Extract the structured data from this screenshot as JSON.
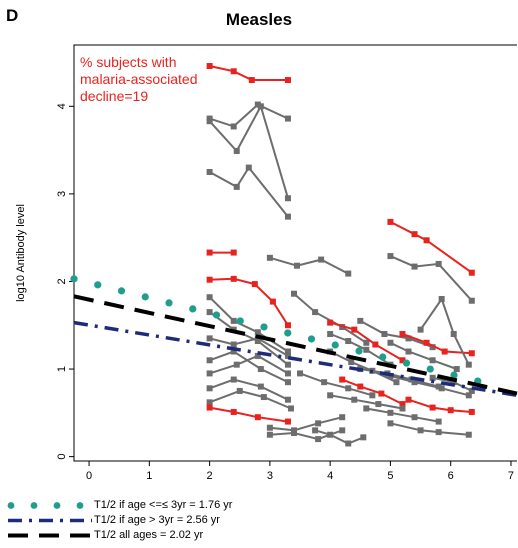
{
  "panel_label": "D",
  "chart_data": {
    "type": "line",
    "title": "Measles",
    "xlabel": "",
    "ylabel": "log10 Antibody level",
    "xlim": [
      -0.25,
      7.1
    ],
    "ylim": [
      -0.05,
      4.7
    ],
    "xticks": [
      0,
      1,
      2,
      3,
      4,
      5,
      6,
      7
    ],
    "yticks": [
      0,
      1,
      2,
      3,
      4
    ],
    "grid": false,
    "legend_placement": "below",
    "annotation": {
      "lines": [
        "% subjects with",
        "malaria-associated",
        "decline=19"
      ],
      "color": "#e8231f",
      "placement": "top-left"
    },
    "colors": {
      "gray": "#6d6d6d",
      "red": "#e8231f",
      "teal": "#1f9e8e",
      "navy": "#1e2a7a",
      "black": "#000000"
    },
    "subjects": [
      {
        "color": "red",
        "x": [
          2.0,
          2.4,
          2.7,
          3.3
        ],
        "y": [
          4.46,
          4.4,
          4.3,
          4.3
        ]
      },
      {
        "color": "gray",
        "x": [
          2.0,
          2.4,
          2.8,
          3.3
        ],
        "y": [
          3.86,
          3.77,
          4.02,
          3.86
        ]
      },
      {
        "color": "gray",
        "x": [
          2.0,
          2.45,
          2.85,
          3.3
        ],
        "y": [
          3.83,
          3.49,
          4.0,
          2.95
        ]
      },
      {
        "color": "gray",
        "x": [
          2.0,
          2.45,
          2.65,
          3.3
        ],
        "y": [
          3.25,
          3.08,
          3.3,
          2.74
        ]
      },
      {
        "color": "red",
        "x": [
          2.0,
          2.4
        ],
        "y": [
          2.33,
          2.33
        ]
      },
      {
        "color": "red",
        "x": [
          2.0,
          2.4,
          2.75,
          3.05,
          3.3
        ],
        "y": [
          2.02,
          2.03,
          1.97,
          1.77,
          1.5
        ]
      },
      {
        "color": "gray",
        "x": [
          3.0,
          3.45,
          3.85,
          4.3
        ],
        "y": [
          2.27,
          2.18,
          2.25,
          2.09
        ]
      },
      {
        "color": "red",
        "x": [
          5.0,
          5.4,
          5.6,
          6.35
        ],
        "y": [
          2.68,
          2.54,
          2.47,
          2.1
        ]
      },
      {
        "color": "gray",
        "x": [
          5.0,
          5.4,
          5.8,
          6.35
        ],
        "y": [
          2.29,
          2.17,
          2.2,
          1.78
        ]
      },
      {
        "color": "gray",
        "x": [
          2.0,
          2.4,
          2.8,
          3.3
        ],
        "y": [
          1.82,
          1.55,
          1.42,
          1.2
        ]
      },
      {
        "color": "gray",
        "x": [
          2.0,
          2.4,
          2.8,
          3.3
        ],
        "y": [
          1.65,
          1.45,
          1.32,
          1.05
        ]
      },
      {
        "color": "gray",
        "x": [
          2.0,
          2.4,
          2.8,
          3.3
        ],
        "y": [
          1.35,
          1.28,
          1.35,
          1.15
        ]
      },
      {
        "color": "gray",
        "x": [
          2.0,
          2.4,
          2.85,
          3.3
        ],
        "y": [
          1.1,
          1.2,
          1.0,
          0.85
        ]
      },
      {
        "color": "gray",
        "x": [
          2.0,
          2.45,
          2.8,
          3.3
        ],
        "y": [
          0.95,
          1.05,
          1.15,
          0.95
        ]
      },
      {
        "color": "gray",
        "x": [
          2.0,
          2.4,
          2.85,
          3.3
        ],
        "y": [
          0.78,
          0.88,
          0.8,
          0.65
        ]
      },
      {
        "color": "gray",
        "x": [
          2.0,
          2.5,
          2.9,
          3.35
        ],
        "y": [
          0.62,
          0.75,
          0.68,
          0.55
        ]
      },
      {
        "color": "red",
        "x": [
          2.0,
          2.4,
          2.8,
          3.3
        ],
        "y": [
          0.56,
          0.51,
          0.45,
          0.4
        ]
      },
      {
        "color": "gray",
        "x": [
          3.0,
          3.4,
          3.8,
          4.2
        ],
        "y": [
          0.33,
          0.3,
          0.38,
          0.45
        ]
      },
      {
        "color": "gray",
        "x": [
          3.0,
          3.4,
          3.8,
          4.2
        ],
        "y": [
          0.25,
          0.27,
          0.2,
          0.3
        ]
      },
      {
        "color": "gray",
        "x": [
          3.75,
          4.0,
          4.3,
          4.55
        ],
        "y": [
          0.3,
          0.25,
          0.15,
          0.22
        ]
      },
      {
        "color": "gray",
        "x": [
          3.4,
          3.75,
          4.2,
          4.6
        ],
        "y": [
          1.86,
          1.65,
          1.48,
          1.3
        ]
      },
      {
        "color": "red",
        "x": [
          4.0,
          4.4,
          4.75,
          5.2
        ],
        "y": [
          1.53,
          1.45,
          1.28,
          1.1
        ]
      },
      {
        "color": "gray",
        "x": [
          4.0,
          4.3,
          4.6,
          5.0
        ],
        "y": [
          1.4,
          1.32,
          1.22,
          1.05
        ]
      },
      {
        "color": "gray",
        "x": [
          4.0,
          4.35,
          4.7,
          5.1
        ],
        "y": [
          1.2,
          1.08,
          0.98,
          0.85
        ]
      },
      {
        "color": "red",
        "x": [
          4.2,
          4.5,
          4.85,
          5.2
        ],
        "y": [
          0.88,
          0.8,
          0.72,
          0.6
        ]
      },
      {
        "color": "gray",
        "x": [
          4.0,
          4.4,
          4.8,
          5.2
        ],
        "y": [
          0.7,
          0.65,
          0.6,
          0.55
        ]
      },
      {
        "color": "gray",
        "x": [
          3.5,
          3.9,
          4.3,
          4.7
        ],
        "y": [
          0.95,
          0.85,
          0.78,
          0.7
        ]
      },
      {
        "color": "gray",
        "x": [
          4.5,
          4.9,
          5.3,
          5.7
        ],
        "y": [
          1.55,
          1.4,
          1.35,
          1.25
        ]
      },
      {
        "color": "gray",
        "x": [
          4.5,
          4.95,
          5.35,
          5.8
        ],
        "y": [
          1.0,
          0.95,
          0.88,
          0.8
        ]
      },
      {
        "color": "gray",
        "x": [
          4.6,
          5.0,
          5.4,
          5.8
        ],
        "y": [
          0.55,
          0.5,
          0.45,
          0.4
        ]
      },
      {
        "color": "gray",
        "x": [
          5.0,
          5.3,
          5.7,
          6.1
        ],
        "y": [
          1.3,
          1.2,
          1.1,
          1.0
        ]
      },
      {
        "color": "red",
        "x": [
          5.2,
          5.6,
          5.9,
          6.35
        ],
        "y": [
          1.4,
          1.3,
          1.2,
          1.18
        ]
      },
      {
        "color": "gray",
        "x": [
          5.0,
          5.4,
          5.85,
          6.3
        ],
        "y": [
          0.92,
          0.85,
          0.78,
          0.7
        ]
      },
      {
        "color": "red",
        "x": [
          5.3,
          5.7,
          6.0,
          6.35
        ],
        "y": [
          0.65,
          0.56,
          0.53,
          0.51
        ]
      },
      {
        "color": "gray",
        "x": [
          5.0,
          5.5,
          5.8,
          6.3
        ],
        "y": [
          0.38,
          0.3,
          0.28,
          0.25
        ]
      },
      {
        "color": "gray",
        "x": [
          5.5,
          5.85,
          6.05,
          6.3
        ],
        "y": [
          1.45,
          1.8,
          1.4,
          1.05
        ]
      },
      {
        "color": "gray",
        "x": [
          5.7,
          6.05,
          6.35
        ],
        "y": [
          0.9,
          0.85,
          0.75
        ]
      }
    ],
    "fit_lines": [
      {
        "name": "T1/2 if age <=≤ 3yr = 1.76 yr",
        "style": "dots",
        "color": "teal",
        "x": [
          -0.25,
          6.75
        ],
        "y": [
          2.03,
          0.81
        ]
      },
      {
        "name": "T1/2 if age > 3yr = 2.56 yr",
        "style": "dashdot",
        "color": "navy",
        "x": [
          -0.25,
          7.1
        ],
        "y": [
          1.53,
          0.7
        ]
      },
      {
        "name": "T1/2 all ages = 2.02 yr",
        "style": "dashed",
        "color": "black",
        "x": [
          -0.25,
          7.1
        ],
        "y": [
          1.83,
          0.72
        ]
      }
    ]
  }
}
